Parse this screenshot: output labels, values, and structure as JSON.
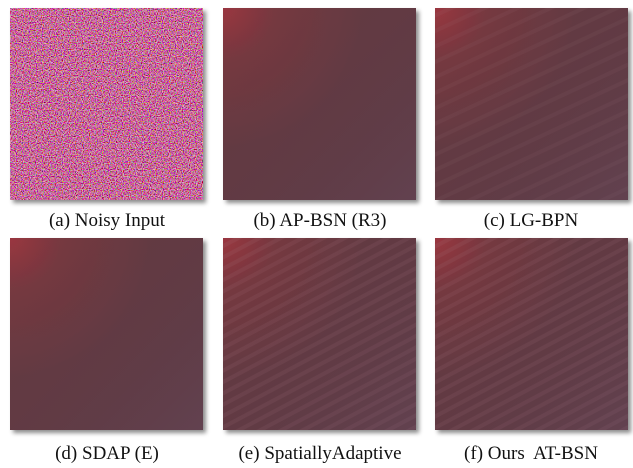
{
  "panels": [
    {
      "caption": "(a) Noisy Input"
    },
    {
      "caption": "(b) AP-BSN (R3)"
    },
    {
      "caption": "(c) LG-BPN"
    },
    {
      "caption": "(d) SDAP (E)"
    },
    {
      "caption": "(e) SpatiallyAdaptive"
    },
    {
      "caption": "(f) Ours  AT-BSN"
    }
  ]
}
